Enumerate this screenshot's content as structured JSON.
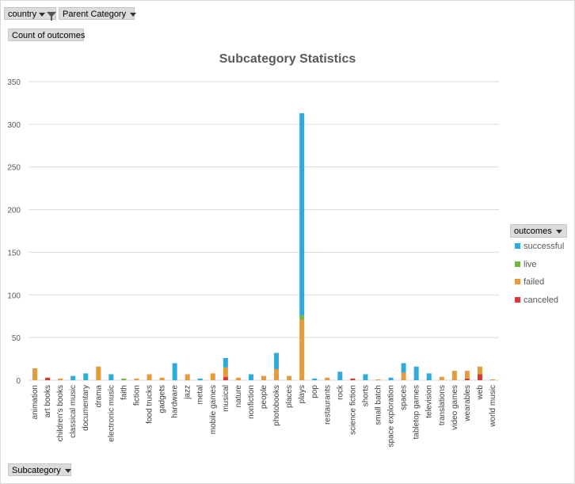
{
  "filters": {
    "country_label": "country",
    "parent_category_label": "Parent Category",
    "value_label": "Count of outcomes",
    "axis_field_label": "Subcategory"
  },
  "legend": {
    "header": "outcomes",
    "items": [
      {
        "label": "successful",
        "color": "#2eaadc"
      },
      {
        "label": "live",
        "color": "#70b843"
      },
      {
        "label": "failed",
        "color": "#e49b3c"
      },
      {
        "label": "canceled",
        "color": "#d4393a"
      }
    ]
  },
  "chart_data": {
    "type": "bar",
    "stacked": true,
    "title": "Subcategory Statistics",
    "xlabel": "",
    "ylabel": "",
    "ylim": [
      0,
      350
    ],
    "yticks": [
      0,
      50,
      100,
      150,
      200,
      250,
      300,
      350
    ],
    "grid": true,
    "legend_position": "right",
    "categories": [
      "animation",
      "art books",
      "children's books",
      "classical music",
      "documentary",
      "drama",
      "electronic music",
      "faith",
      "fiction",
      "food trucks",
      "gadgets",
      "hardware",
      "jazz",
      "metal",
      "mobile games",
      "musical",
      "nature",
      "nonfiction",
      "people",
      "photobooks",
      "places",
      "plays",
      "pop",
      "restaurants",
      "rock",
      "science fiction",
      "shorts",
      "small batch",
      "space exploration",
      "spaces",
      "tabletop games",
      "television",
      "translations",
      "video games",
      "wearables",
      "web",
      "world music"
    ],
    "series": [
      {
        "name": "canceled",
        "color": "#d4393a",
        "values": [
          0,
          3,
          0,
          0,
          0,
          0,
          0,
          0,
          0,
          0,
          0,
          0,
          0,
          0,
          0,
          4,
          0,
          0,
          0,
          0,
          0,
          0,
          0,
          0,
          0,
          2,
          0,
          0,
          0,
          0,
          0,
          0,
          0,
          0,
          2,
          7,
          0
        ]
      },
      {
        "name": "failed",
        "color": "#e49b3c",
        "values": [
          14,
          0,
          2,
          0,
          0,
          16,
          0,
          0,
          2,
          7,
          3,
          0,
          7,
          0,
          8,
          11,
          3,
          0,
          5,
          13,
          5,
          71,
          0,
          3,
          0,
          0,
          0,
          1,
          0,
          9,
          0,
          0,
          4,
          11,
          9,
          9,
          1
        ]
      },
      {
        "name": "live",
        "color": "#70b843",
        "values": [
          0,
          0,
          0,
          0,
          0,
          0,
          0,
          2,
          0,
          0,
          0,
          0,
          0,
          0,
          0,
          0,
          0,
          0,
          0,
          0,
          0,
          5,
          0,
          0,
          0,
          0,
          0,
          0,
          0,
          0,
          0,
          0,
          0,
          0,
          0,
          0,
          0
        ]
      },
      {
        "name": "successful",
        "color": "#2eaadc",
        "values": [
          0,
          0,
          0,
          5,
          8,
          0,
          7,
          0,
          0,
          0,
          0,
          20,
          0,
          2,
          0,
          11,
          0,
          7,
          0,
          19,
          0,
          237,
          2,
          0,
          10,
          0,
          7,
          0,
          3,
          11,
          16,
          8,
          0,
          0,
          0,
          0,
          0
        ]
      }
    ]
  }
}
